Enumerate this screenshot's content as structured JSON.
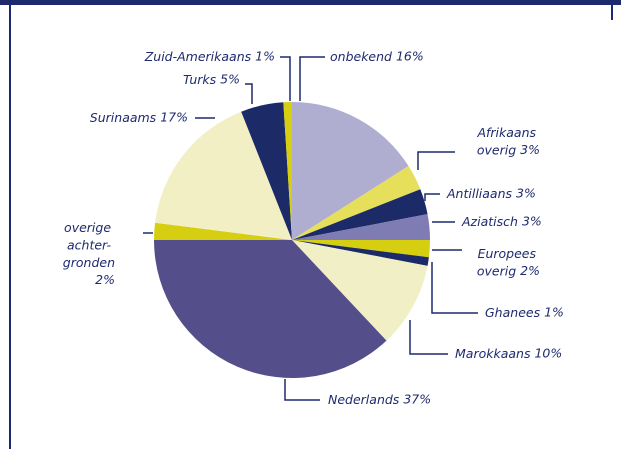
{
  "chart_data": {
    "type": "pie",
    "categories": [
      "onbekend",
      "Afrikaans\noverig",
      "Antilliaans",
      "Aziatisch",
      "Europees\noverig",
      "Ghanees",
      "Marokkaans",
      "Nederlands",
      "overige\nachter-\ngronden",
      "Surinaams",
      "Turks",
      "Zuid-Amerikaans"
    ],
    "values": [
      16,
      3,
      3,
      3,
      2,
      1,
      10,
      37,
      2,
      17,
      5,
      1
    ],
    "value_labels": [
      "16%",
      "3%",
      "3%",
      "3%",
      "2%",
      "1%",
      "10%",
      "37%",
      "2%",
      "17%",
      "5%",
      "1%"
    ],
    "colors": [
      "#b0aed0",
      "#e6df5c",
      "#1c2a68",
      "#7e7cb2",
      "#d6ce10",
      "#1c2a68",
      "#f1efc6",
      "#544e8a",
      "#d6ce10",
      "#f2efc4",
      "#1c2a68",
      "#d6ce10"
    ]
  }
}
